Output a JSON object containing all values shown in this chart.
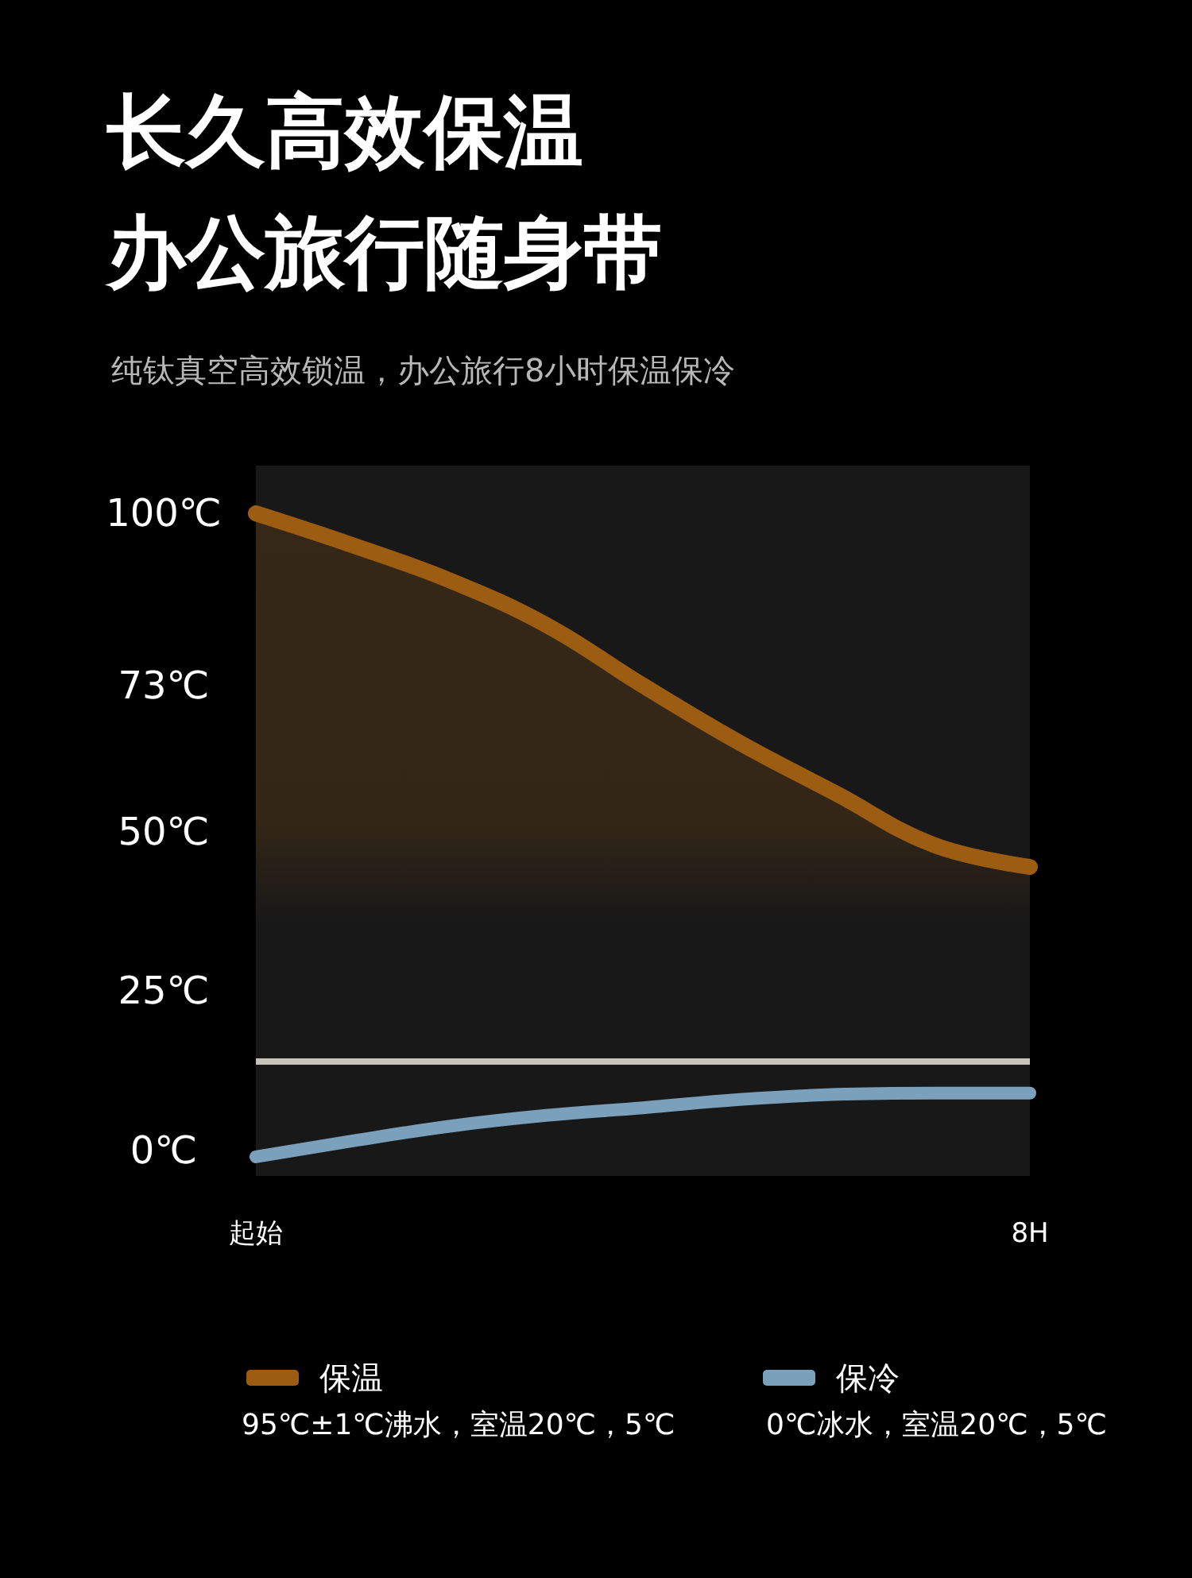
{
  "chart_data": {
    "type": "line",
    "title": "长久高效保温办公旅行随身带",
    "subtitle": "纯钛真空高效锁温，办公旅行8小时保温保冷",
    "categories": [
      "起始",
      null,
      null,
      null,
      null,
      null,
      null,
      null,
      "8H"
    ],
    "ylim": [
      -4,
      107.5
    ],
    "yticks": [
      {
        "value": 0,
        "label": "0℃"
      },
      {
        "value": 25,
        "label": "25℃"
      },
      {
        "value": 50,
        "label": "50℃"
      },
      {
        "value": 73,
        "label": "73℃"
      },
      {
        "value": 100,
        "label": "100℃"
      }
    ],
    "series": [
      {
        "name": "保温",
        "type": "area",
        "color": "#9c5d12",
        "values": [
          100,
          95,
          89.5,
          82.5,
          73,
          64,
          56,
          48,
          44.5
        ]
      },
      {
        "name": "保冷",
        "color": "#7aa0bb",
        "values": [
          -1,
          1.5,
          3.8,
          5.5,
          6.7,
          8,
          8.8,
          9,
          9
        ]
      }
    ],
    "ref_lines": [
      {
        "axis": "y",
        "value": 14,
        "color": "#c8c4bc"
      }
    ],
    "annotations": [
      "95℃±1℃沸水，室温20℃，5℃",
      "0℃冰水，室温20℃，5℃"
    ],
    "legend": "bottom",
    "marker": "none"
  }
}
